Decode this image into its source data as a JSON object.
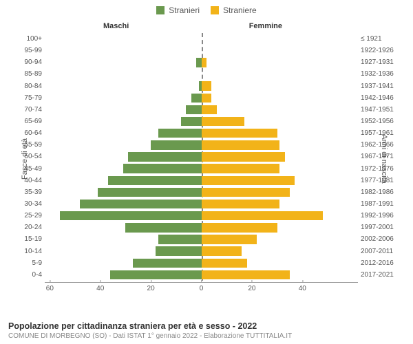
{
  "chart": {
    "type": "population-pyramid",
    "legend": {
      "male": {
        "label": "Stranieri",
        "color": "#6a994e"
      },
      "female": {
        "label": "Straniere",
        "color": "#f2b319"
      }
    },
    "gender_headers": {
      "left": "Maschi",
      "right": "Femmine"
    },
    "y_titles": {
      "left": "Fasce di età",
      "right": "Anni di nascita"
    },
    "x_axis": {
      "max": 62,
      "ticks_left": [
        60,
        40,
        20,
        0
      ],
      "ticks_right": [
        0,
        20,
        40
      ]
    },
    "background_color": "#ffffff",
    "axis_color": "#999999",
    "text_color": "#555555",
    "centerline_color": "#888888",
    "row_height": 17.1,
    "bar_height_ratio": 0.78,
    "rows": [
      {
        "age": "100+",
        "birth": "≤ 1921",
        "m": 0,
        "f": 0
      },
      {
        "age": "95-99",
        "birth": "1922-1926",
        "m": 0,
        "f": 0
      },
      {
        "age": "90-94",
        "birth": "1927-1931",
        "m": 2,
        "f": 2
      },
      {
        "age": "85-89",
        "birth": "1932-1936",
        "m": 0,
        "f": 0
      },
      {
        "age": "80-84",
        "birth": "1937-1941",
        "m": 1,
        "f": 4
      },
      {
        "age": "75-79",
        "birth": "1942-1946",
        "m": 4,
        "f": 4
      },
      {
        "age": "70-74",
        "birth": "1947-1951",
        "m": 6,
        "f": 6
      },
      {
        "age": "65-69",
        "birth": "1952-1956",
        "m": 8,
        "f": 17
      },
      {
        "age": "60-64",
        "birth": "1957-1961",
        "m": 17,
        "f": 30
      },
      {
        "age": "55-59",
        "birth": "1962-1966",
        "m": 20,
        "f": 31
      },
      {
        "age": "50-54",
        "birth": "1967-1971",
        "m": 29,
        "f": 33
      },
      {
        "age": "45-49",
        "birth": "1972-1976",
        "m": 31,
        "f": 31
      },
      {
        "age": "40-44",
        "birth": "1977-1981",
        "m": 37,
        "f": 37
      },
      {
        "age": "35-39",
        "birth": "1982-1986",
        "m": 41,
        "f": 35
      },
      {
        "age": "30-34",
        "birth": "1987-1991",
        "m": 48,
        "f": 31
      },
      {
        "age": "25-29",
        "birth": "1992-1996",
        "m": 56,
        "f": 48
      },
      {
        "age": "20-24",
        "birth": "1997-2001",
        "m": 30,
        "f": 30
      },
      {
        "age": "15-19",
        "birth": "2002-2006",
        "m": 17,
        "f": 22
      },
      {
        "age": "10-14",
        "birth": "2007-2011",
        "m": 18,
        "f": 16
      },
      {
        "age": "5-9",
        "birth": "2012-2016",
        "m": 27,
        "f": 18
      },
      {
        "age": "0-4",
        "birth": "2017-2021",
        "m": 36,
        "f": 35
      }
    ]
  },
  "footer": {
    "title": "Popolazione per cittadinanza straniera per età e sesso - 2022",
    "subtitle": "COMUNE DI MORBEGNO (SO) - Dati ISTAT 1° gennaio 2022 - Elaborazione TUTTITALIA.IT"
  }
}
